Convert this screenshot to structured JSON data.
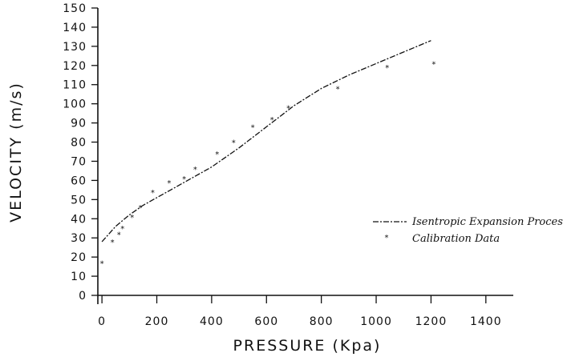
{
  "chart_data": {
    "type": "scatter",
    "title": "",
    "xlabel": "PRESSURE (Kpa)",
    "ylabel": "VELOCITY (m/s)",
    "xlim": [
      -15,
      1500
    ],
    "ylim": [
      0,
      150
    ],
    "x_ticks": [
      0,
      200,
      400,
      600,
      800,
      1000,
      1200,
      1400
    ],
    "y_ticks": [
      0,
      10,
      20,
      30,
      40,
      50,
      60,
      70,
      80,
      90,
      100,
      110,
      120,
      130,
      140,
      150
    ],
    "grid": false,
    "legend_position": "right",
    "series": [
      {
        "name": "Isentropic Expansion Process",
        "type": "line",
        "style": "dash-dot",
        "x": [
          0,
          50,
          100,
          150,
          200,
          250,
          300,
          400,
          500,
          600,
          700,
          800,
          900,
          1000,
          1100,
          1200
        ],
        "y": [
          28,
          36,
          42,
          47,
          51,
          55,
          59,
          67,
          77,
          88,
          99,
          108,
          115,
          121,
          127,
          133
        ]
      },
      {
        "name": "Calibration Data",
        "type": "scatter",
        "marker": "*",
        "x": [
          0,
          38,
          62,
          75,
          110,
          140,
          185,
          245,
          300,
          340,
          420,
          480,
          550,
          620,
          680,
          860,
          1040,
          1210
        ],
        "y": [
          17,
          28,
          32,
          35,
          41,
          46,
          54,
          59,
          61,
          66,
          74,
          80,
          88,
          92,
          98,
          108,
          119,
          121
        ]
      }
    ]
  }
}
